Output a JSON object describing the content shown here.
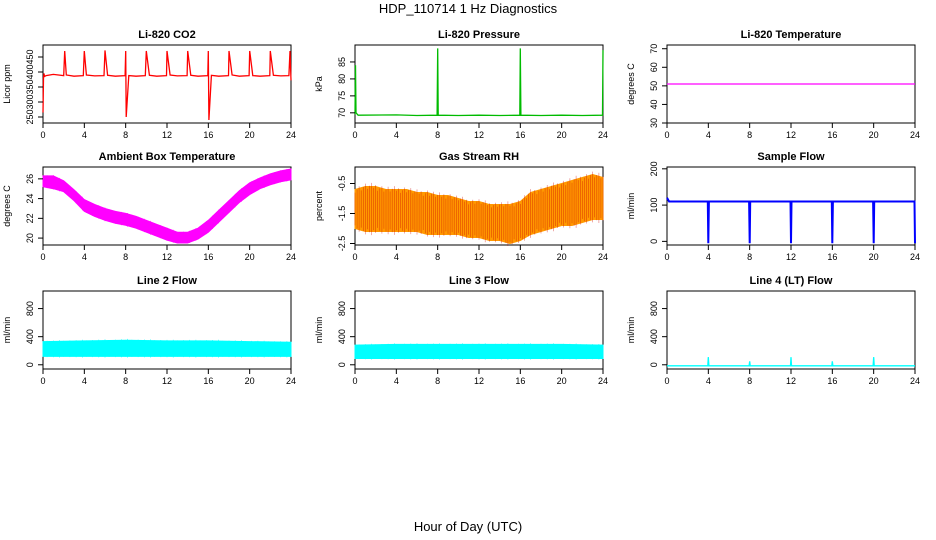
{
  "title": "HDP_110714  1 Hz Diagnostics",
  "xlabel": "Hour of Day (UTC)",
  "chart_data": [
    {
      "type": "line",
      "title": "Li-820 CO2",
      "ylabel": "Licor ppm",
      "color": "#ff0000",
      "xlim": [
        0,
        24
      ],
      "ylim": [
        230,
        490
      ],
      "xticks": [
        0,
        4,
        8,
        12,
        16,
        20,
        24
      ],
      "yticks": [
        250,
        300,
        350,
        400,
        450
      ],
      "series": [
        {
          "x": [
            0,
            0.05,
            0.1,
            0.15,
            0.3,
            1.0,
            1.5,
            2.0,
            2.1,
            2.25,
            3.0,
            3.9,
            4.0,
            4.2,
            5.0,
            5.9,
            6.0,
            6.25,
            7.0,
            7.95,
            8.0,
            8.05,
            8.3,
            9.0,
            9.9,
            10.0,
            10.3,
            11.0,
            11.95,
            12.0,
            12.3,
            13.0,
            13.95,
            14.0,
            14.3,
            15.0,
            15.95,
            16.0,
            16.05,
            16.3,
            17.0,
            17.95,
            18.0,
            18.3,
            19.0,
            19.95,
            20.0,
            20.3,
            21.0,
            21.95,
            22.0,
            22.3,
            23.0,
            23.8,
            23.9,
            24.0
          ],
          "y": [
            265,
            380,
            395,
            385,
            388,
            392,
            390,
            388,
            470,
            390,
            386,
            388,
            470,
            390,
            387,
            388,
            472,
            389,
            386,
            388,
            470,
            250,
            388,
            386,
            388,
            470,
            389,
            386,
            388,
            470,
            390,
            387,
            388,
            470,
            389,
            386,
            388,
            470,
            240,
            389,
            386,
            388,
            470,
            390,
            386,
            388,
            470,
            388,
            386,
            388,
            470,
            389,
            387,
            388,
            470,
            372
          ]
        }
      ]
    },
    {
      "type": "line",
      "title": "Li-820 Pressure",
      "ylabel": "kPa",
      "color": "#00bb00",
      "xlim": [
        0,
        24
      ],
      "ylim": [
        67,
        90
      ],
      "xticks": [
        0,
        4,
        8,
        12,
        16,
        20,
        24
      ],
      "yticks": [
        70,
        75,
        80,
        85
      ],
      "series": [
        {
          "x": [
            0,
            0.05,
            0.1,
            0.3,
            4,
            6,
            7.95,
            8.0,
            8.05,
            10,
            12,
            14,
            15.95,
            16.0,
            16.05,
            18,
            20,
            22,
            23.95,
            24.0
          ],
          "y": [
            69.5,
            84,
            70,
            69.3,
            69.4,
            69.2,
            69.3,
            89,
            69.3,
            69.2,
            69.3,
            69.2,
            69.3,
            89,
            69.3,
            69.2,
            69.3,
            69.2,
            69.3,
            88.5
          ]
        }
      ]
    },
    {
      "type": "line",
      "title": "Li-820 Temperature",
      "ylabel": "degrees C",
      "color": "#ff00ff",
      "xlim": [
        0,
        24
      ],
      "ylim": [
        30,
        72
      ],
      "xticks": [
        0,
        4,
        8,
        12,
        16,
        20,
        24
      ],
      "yticks": [
        30,
        40,
        50,
        60,
        70
      ],
      "series": [
        {
          "x": [
            0,
            24
          ],
          "y": [
            51,
            51
          ]
        }
      ]
    },
    {
      "type": "area",
      "title": "Ambient Box Temperature",
      "ylabel": "degrees C",
      "color": "#ff00ff",
      "xlim": [
        0,
        24
      ],
      "ylim": [
        19.3,
        27.2
      ],
      "xticks": [
        0,
        4,
        8,
        12,
        16,
        20,
        24
      ],
      "yticks": [
        20,
        22,
        24,
        26
      ],
      "series": [
        {
          "x": [
            0,
            1,
            2,
            3,
            4,
            5,
            6,
            7,
            8,
            9,
            10,
            11,
            12,
            13,
            14,
            15,
            16,
            17,
            18,
            19,
            20,
            21,
            22,
            23,
            24
          ],
          "y_high": [
            26.3,
            26.3,
            25.8,
            24.9,
            23.9,
            23.4,
            23.0,
            22.7,
            22.5,
            22.2,
            21.8,
            21.4,
            21.0,
            20.6,
            20.6,
            21.0,
            21.8,
            22.8,
            23.8,
            24.8,
            25.6,
            26.1,
            26.5,
            26.8,
            27.0
          ],
          "y_low": [
            25.2,
            25.0,
            24.7,
            23.8,
            22.7,
            22.2,
            21.8,
            21.5,
            21.3,
            21.0,
            20.6,
            20.2,
            19.8,
            19.5,
            19.5,
            19.9,
            20.6,
            21.6,
            22.6,
            23.6,
            24.4,
            25.0,
            25.4,
            25.7,
            25.9
          ]
        }
      ]
    },
    {
      "type": "area",
      "title": "Gas Stream RH",
      "ylabel": "percent",
      "color": "#ff9900",
      "color_dots": "#cc0000",
      "xlim": [
        0,
        24
      ],
      "ylim": [
        -2.55,
        0.05
      ],
      "xticks": [
        0,
        4,
        8,
        12,
        16,
        20,
        24
      ],
      "yticks": [
        -2.5,
        -1.5,
        -0.5
      ],
      "series": [
        {
          "x": [
            0,
            1,
            2,
            3,
            4,
            5,
            6,
            7,
            8,
            9,
            10,
            11,
            12,
            13,
            14,
            15,
            16,
            17,
            18,
            19,
            20,
            21,
            22,
            23,
            24
          ],
          "y_high": [
            -0.7,
            -0.6,
            -0.6,
            -0.7,
            -0.7,
            -0.7,
            -0.8,
            -0.8,
            -0.9,
            -0.9,
            -1.0,
            -1.1,
            -1.1,
            -1.2,
            -1.2,
            -1.2,
            -1.1,
            -0.8,
            -0.7,
            -0.6,
            -0.5,
            -0.4,
            -0.3,
            -0.2,
            -0.3
          ],
          "y_low": [
            -2.0,
            -2.1,
            -2.1,
            -2.1,
            -2.1,
            -2.1,
            -2.1,
            -2.2,
            -2.2,
            -2.2,
            -2.2,
            -2.3,
            -2.3,
            -2.4,
            -2.4,
            -2.5,
            -2.4,
            -2.2,
            -2.1,
            -2.0,
            -1.9,
            -1.9,
            -1.8,
            -1.7,
            -1.7
          ]
        }
      ]
    },
    {
      "type": "line",
      "title": "Sample Flow",
      "ylabel": "ml/min",
      "color": "#0000ff",
      "xlim": [
        0,
        24
      ],
      "ylim": [
        -10,
        205
      ],
      "xticks": [
        0,
        4,
        8,
        12,
        16,
        20,
        24
      ],
      "yticks": [
        0,
        100,
        200
      ],
      "series": [
        {
          "x": [
            0,
            0.2,
            3.95,
            4.0,
            4.05,
            7.95,
            8.0,
            8.05,
            11.95,
            12.0,
            12.05,
            15.95,
            16.0,
            16.05,
            19.95,
            20.0,
            20.05,
            23.95,
            24.0
          ],
          "y": [
            120,
            110,
            110,
            -5,
            110,
            110,
            -5,
            110,
            110,
            -5,
            110,
            110,
            -5,
            110,
            110,
            -5,
            110,
            110,
            -5
          ]
        }
      ]
    },
    {
      "type": "area",
      "title": "Line 2 Flow",
      "ylabel": "ml/min",
      "color": "#00ffff",
      "xlim": [
        0,
        24
      ],
      "ylim": [
        -60,
        1050
      ],
      "xticks": [
        0,
        4,
        8,
        12,
        16,
        20,
        24
      ],
      "yticks": [
        0,
        400,
        800
      ],
      "series": [
        {
          "x": [
            0,
            4,
            8,
            12,
            16,
            20,
            24
          ],
          "y_high": [
            330,
            340,
            350,
            340,
            340,
            330,
            320
          ],
          "y_low": [
            120,
            120,
            120,
            120,
            120,
            120,
            120
          ]
        }
      ]
    },
    {
      "type": "area",
      "title": "Line 3 Flow",
      "ylabel": "ml/min",
      "color": "#00ffff",
      "xlim": [
        0,
        24
      ],
      "ylim": [
        -60,
        1050
      ],
      "xticks": [
        0,
        4,
        8,
        12,
        16,
        20,
        24
      ],
      "yticks": [
        0,
        400,
        800
      ],
      "series": [
        {
          "x": [
            0,
            4,
            8,
            12,
            16,
            20,
            24
          ],
          "y_high": [
            280,
            290,
            290,
            290,
            290,
            290,
            280
          ],
          "y_low": [
            90,
            90,
            90,
            90,
            90,
            90,
            90
          ]
        }
      ]
    },
    {
      "type": "line",
      "title": "Line 4 (LT) Flow",
      "ylabel": "ml/min",
      "color": "#00ffff",
      "xlim": [
        0,
        24
      ],
      "ylim": [
        -60,
        1050
      ],
      "xticks": [
        0,
        4,
        8,
        12,
        16,
        20,
        24
      ],
      "yticks": [
        0,
        400,
        800
      ],
      "series": [
        {
          "x": [
            0,
            3.95,
            4.0,
            4.05,
            7.95,
            8.0,
            8.05,
            11.95,
            12.0,
            12.05,
            15.95,
            16.0,
            16.05,
            19.95,
            20.0,
            20.05,
            24
          ],
          "y": [
            -15,
            -15,
            110,
            -15,
            -15,
            50,
            -15,
            -15,
            110,
            -15,
            -15,
            50,
            -15,
            -15,
            110,
            -15,
            -15
          ]
        }
      ]
    }
  ]
}
